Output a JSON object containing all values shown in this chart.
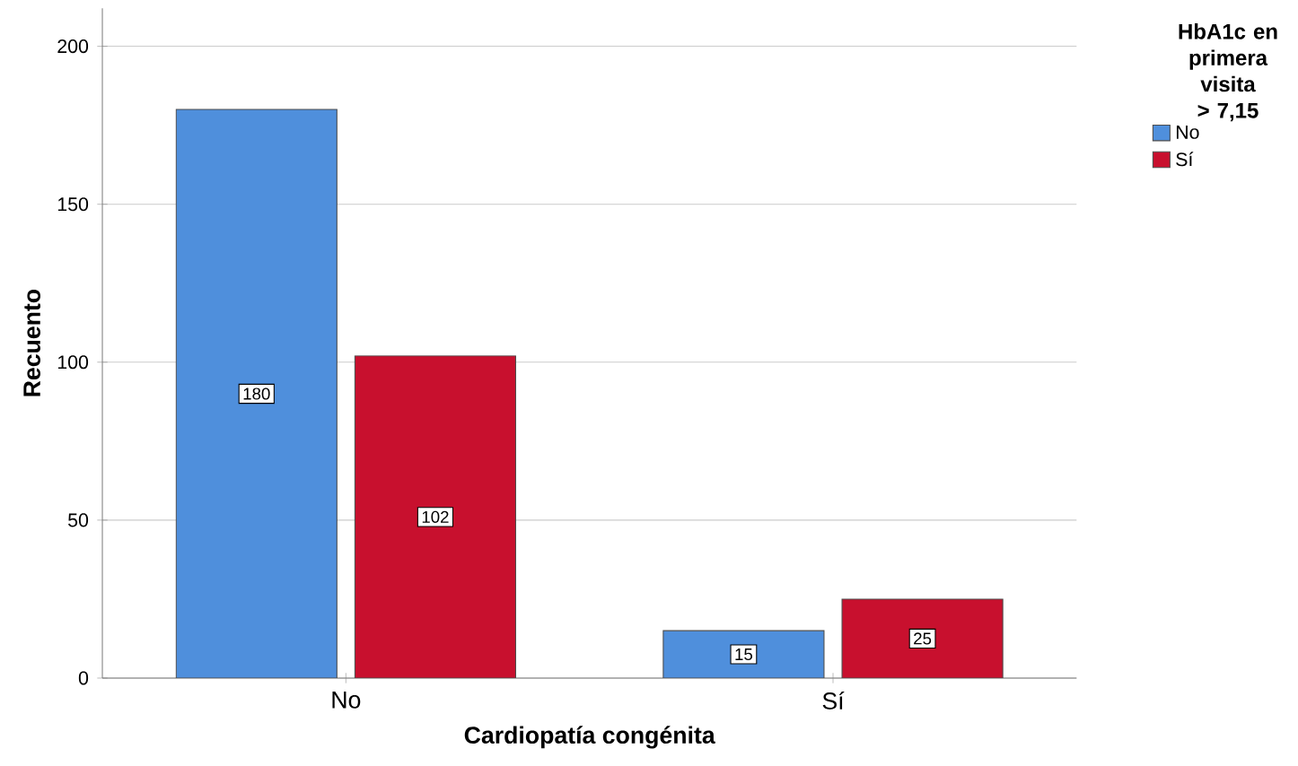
{
  "chart_data": {
    "type": "bar",
    "xlabel": "Cardiopatía congénita",
    "ylabel": "Recuento",
    "legend_title": "HbA1c en primera visita > 7,15",
    "categories": [
      "No",
      "Sí"
    ],
    "series": [
      {
        "name": "No",
        "color": "#4f8fdc",
        "values": [
          180,
          15
        ]
      },
      {
        "name": "Sí",
        "color": "#c8102e",
        "values": [
          102,
          25
        ]
      }
    ],
    "ylim": [
      0,
      212
    ],
    "yticks": [
      0,
      50,
      100,
      150,
      200
    ],
    "grid": "y",
    "legend": "top right",
    "data_labels": true
  }
}
